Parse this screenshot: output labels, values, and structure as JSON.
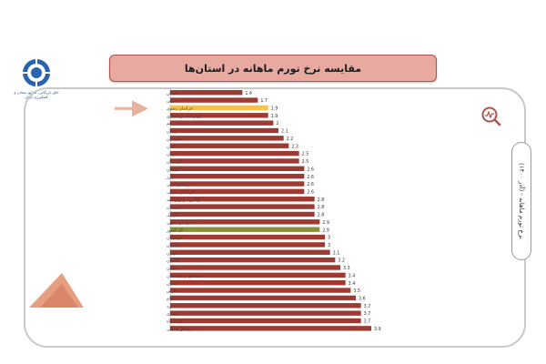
{
  "header": {
    "title": "مقایسه نرخ تورم ماهانه در استان‌ها"
  },
  "logo": {
    "text": "اتاق بازرگانی، صنایع، معادن و کشاورزی ایران"
  },
  "side_label": {
    "text": "(آذر ۱۴۰۰) - نرخ تورم ماهانه"
  },
  "colors": {
    "bar": "#9e3a32",
    "highlight_province": "#f2c14e",
    "highlight_country": "#8a8f3a",
    "banner": "#e7a9a0",
    "arrow": "#e8b19e"
  },
  "chart_data": {
    "type": "bar",
    "orientation": "horizontal",
    "title": "مقایسه نرخ تورم ماهانه در استان‌ها",
    "categories": [
      "همدان",
      "قزوین",
      "خراسان رضوی",
      "چهارمحال و بختیاری",
      "قم",
      "زنجان",
      "مازندران",
      "گیلان",
      "کرمان",
      "کردستان",
      "لرستان",
      "البرز",
      "آذربایجان غربی",
      "آذربایجان شرقی",
      "کهگیلویه و بویراحمد",
      "خوزستان",
      "اردبیل",
      "خراسان جنوبی",
      "کل کشور",
      "هرمزگان",
      "سمنان",
      "تهران",
      "گلستان",
      "اصفهان",
      "سیستان و بلوچستان",
      "سمنان",
      "فارس",
      "ایلام",
      "یزد",
      "مرکزی",
      "کرمانشاه",
      "خراسان شمالی"
    ],
    "values": [
      1.4,
      1.7,
      1.9,
      1.9,
      2,
      2.1,
      2.2,
      2.3,
      2.5,
      2.5,
      2.6,
      2.6,
      2.6,
      2.6,
      2.8,
      2.8,
      2.8,
      2.9,
      2.9,
      3,
      3,
      3.1,
      3.2,
      3.3,
      3.4,
      3.4,
      3.5,
      3.6,
      3.7,
      3.7,
      3.7,
      3.9
    ],
    "value_labels": [
      "1.4",
      "1.7",
      "1.9",
      "1.9",
      "2",
      "2.1",
      "2.2",
      "2.3",
      "2.5",
      "2.5",
      "2.6",
      "2.6",
      "2.6",
      "2.6",
      "2.8",
      "2.8",
      "2.8",
      "2.9",
      "2.9",
      "3",
      "3",
      "3.1",
      "3.2",
      "3.3",
      "3.4",
      "3.4",
      "3.5",
      "3.6",
      "3.7",
      "3.7",
      "3.7",
      "3.9"
    ],
    "highlight_province_index": 2,
    "highlight_country_index": 18,
    "xlim": [
      0,
      4.5
    ],
    "grid": false,
    "legend": "none"
  }
}
